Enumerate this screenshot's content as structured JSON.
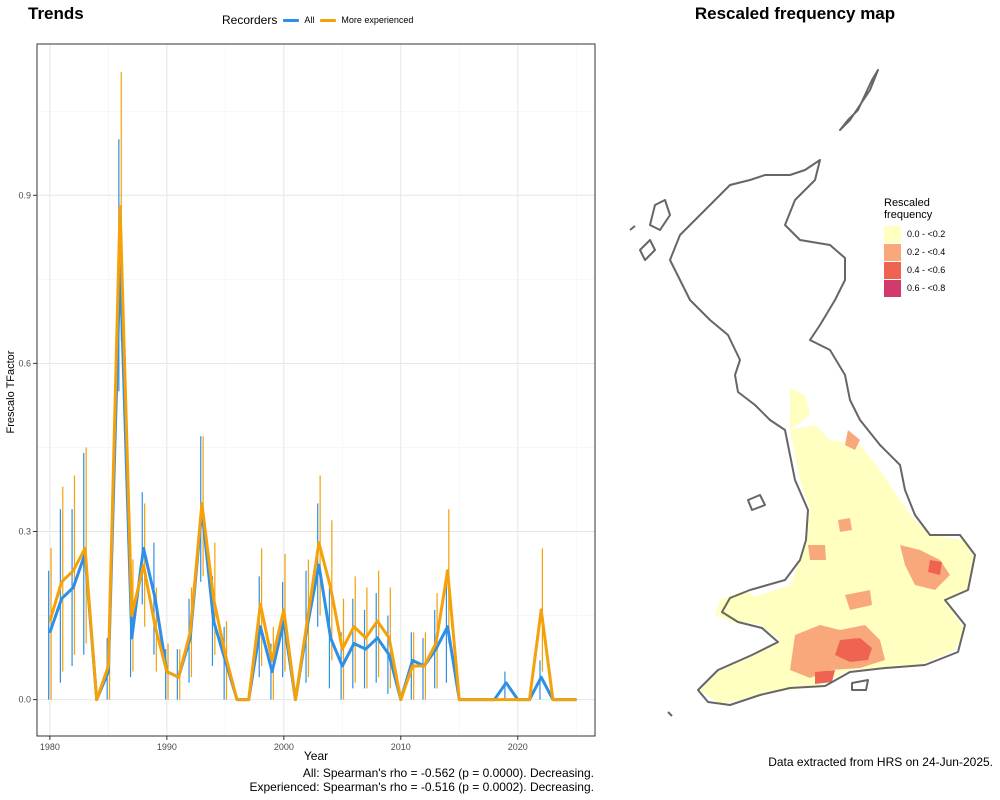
{
  "trends": {
    "title": "Trends",
    "legend": {
      "title": "Recorders",
      "items": [
        {
          "label": "All",
          "color": "#2E8FE6"
        },
        {
          "label": "More experienced",
          "color": "#F5A10A"
        }
      ]
    },
    "stats": [
      "All: Spearman's rho = -0.562 (p = 0.0000). Decreasing.",
      "Experienced: Spearman's rho = -0.516 (p = 0.0002). Decreasing."
    ]
  },
  "chart_data": {
    "type": "line",
    "xlabel": "Year",
    "ylabel": "Frescalo TFactor",
    "xlim": [
      1978.9,
      2026.6
    ],
    "ylim": [
      -0.065,
      1.17
    ],
    "x_ticks": [
      1980,
      1990,
      2000,
      2010,
      2020
    ],
    "y_ticks": [
      0.0,
      0.3,
      0.6,
      0.9
    ],
    "y_tick_labels": [
      "0.0",
      "0.3",
      "0.6",
      "0.9"
    ],
    "grid": true,
    "legend_position": "top",
    "x": [
      1980,
      1981,
      1982,
      1983,
      1984,
      1985,
      1986,
      1987,
      1988,
      1989,
      1990,
      1991,
      1992,
      1993,
      1994,
      1995,
      1996,
      1997,
      1998,
      1999,
      2000,
      2001,
      2002,
      2003,
      2004,
      2005,
      2006,
      2007,
      2008,
      2009,
      2010,
      2011,
      2012,
      2013,
      2014,
      2015,
      2016,
      2017,
      2018,
      2019,
      2020,
      2021,
      2022,
      2023,
      2024,
      2025
    ],
    "series": [
      {
        "name": "All",
        "color": "#2E8FE6",
        "values": [
          0.12,
          0.18,
          0.2,
          0.26,
          0.0,
          0.05,
          0.78,
          0.11,
          0.27,
          0.18,
          0.05,
          0.04,
          0.11,
          0.34,
          0.14,
          0.07,
          0.0,
          0.0,
          0.13,
          0.05,
          0.14,
          0.0,
          0.13,
          0.24,
          0.11,
          0.06,
          0.1,
          0.09,
          0.11,
          0.08,
          0.0,
          0.07,
          0.06,
          0.09,
          0.13,
          0.0,
          0.0,
          0.0,
          0.0,
          0.03,
          0.0,
          0.0,
          0.04,
          0.0,
          0.0,
          0.0
        ],
        "lower": [
          0.0,
          0.03,
          0.06,
          0.08,
          0.0,
          0.0,
          0.55,
          0.04,
          0.17,
          0.08,
          0.0,
          0.0,
          0.03,
          0.21,
          0.06,
          0.0,
          0.0,
          0.0,
          0.04,
          0.0,
          0.04,
          0.0,
          0.03,
          0.13,
          0.02,
          0.0,
          0.02,
          0.02,
          0.03,
          0.01,
          0.0,
          0.0,
          0.0,
          0.02,
          0.03,
          0.0,
          0.0,
          0.0,
          0.0,
          0.0,
          0.0,
          0.0,
          0.0,
          0.0,
          0.0,
          0.0
        ],
        "upper": [
          0.23,
          0.34,
          0.34,
          0.44,
          0.0,
          0.11,
          1.0,
          0.18,
          0.37,
          0.28,
          0.09,
          0.09,
          0.18,
          0.47,
          0.22,
          0.13,
          0.0,
          0.0,
          0.22,
          0.1,
          0.21,
          0.0,
          0.23,
          0.35,
          0.2,
          0.12,
          0.18,
          0.16,
          0.19,
          0.15,
          0.0,
          0.12,
          0.11,
          0.16,
          0.23,
          0.0,
          0.0,
          0.0,
          0.0,
          0.05,
          0.0,
          0.0,
          0.07,
          0.0,
          0.0,
          0.0
        ]
      },
      {
        "name": "More experienced",
        "color": "#F5A10A",
        "values": [
          0.14,
          0.21,
          0.23,
          0.27,
          0.0,
          0.06,
          0.88,
          0.15,
          0.24,
          0.13,
          0.05,
          0.04,
          0.12,
          0.35,
          0.18,
          0.08,
          0.0,
          0.0,
          0.17,
          0.07,
          0.16,
          0.0,
          0.14,
          0.28,
          0.2,
          0.09,
          0.13,
          0.11,
          0.14,
          0.11,
          0.0,
          0.06,
          0.06,
          0.1,
          0.23,
          0.0,
          0.0,
          0.0,
          0.0,
          0.0,
          0.0,
          0.0,
          0.16,
          0.0,
          0.0,
          0.0
        ],
        "lower": [
          0.0,
          0.05,
          0.08,
          0.1,
          0.0,
          0.0,
          0.64,
          0.05,
          0.13,
          0.05,
          0.0,
          0.0,
          0.04,
          0.22,
          0.08,
          0.0,
          0.0,
          0.0,
          0.06,
          0.0,
          0.05,
          0.0,
          0.04,
          0.15,
          0.07,
          0.0,
          0.03,
          0.02,
          0.04,
          0.02,
          0.0,
          0.0,
          0.0,
          0.02,
          0.1,
          0.0,
          0.0,
          0.0,
          0.0,
          0.0,
          0.0,
          0.0,
          0.05,
          0.0,
          0.0,
          0.0
        ],
        "upper": [
          0.27,
          0.38,
          0.4,
          0.45,
          0.0,
          0.12,
          1.12,
          0.25,
          0.35,
          0.2,
          0.1,
          0.09,
          0.2,
          0.47,
          0.28,
          0.14,
          0.0,
          0.0,
          0.27,
          0.13,
          0.26,
          0.0,
          0.25,
          0.4,
          0.32,
          0.18,
          0.22,
          0.2,
          0.23,
          0.2,
          0.0,
          0.12,
          0.12,
          0.19,
          0.34,
          0.0,
          0.0,
          0.0,
          0.0,
          0.0,
          0.0,
          0.0,
          0.27,
          0.0,
          0.0,
          0.0
        ]
      }
    ]
  },
  "map": {
    "title": "Rescaled frequency map",
    "legend_title_lines": [
      "Rescaled",
      "frequency"
    ],
    "classes": [
      {
        "label": "0.0 - <0.2",
        "color": "#FFFFC2"
      },
      {
        "label": "0.2 - <0.4",
        "color": "#F9A87C"
      },
      {
        "label": "0.4 - <0.6",
        "color": "#EF6451"
      },
      {
        "label": "0.6 - <0.8",
        "color": "#D13A6A"
      }
    ],
    "outline_color": "#666666",
    "note": "Data extracted from HRS on 24-Jun-2025."
  }
}
